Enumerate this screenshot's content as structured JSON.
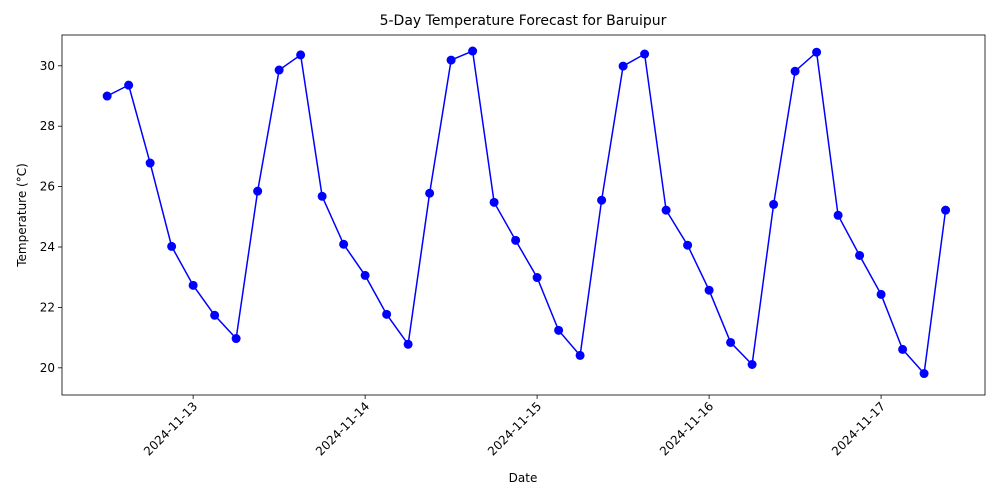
{
  "chart_data": {
    "type": "line",
    "title": "5-Day Temperature Forecast for Baruipur",
    "xlabel": "Date",
    "ylabel": "Temperature (°C)",
    "x": [
      "2024-11-12 12:00",
      "2024-11-12 15:00",
      "2024-11-12 18:00",
      "2024-11-12 21:00",
      "2024-11-13 00:00",
      "2024-11-13 03:00",
      "2024-11-13 06:00",
      "2024-11-13 09:00",
      "2024-11-13 12:00",
      "2024-11-13 15:00",
      "2024-11-13 18:00",
      "2024-11-13 21:00",
      "2024-11-14 00:00",
      "2024-11-14 03:00",
      "2024-11-14 06:00",
      "2024-11-14 09:00",
      "2024-11-14 12:00",
      "2024-11-14 15:00",
      "2024-11-14 18:00",
      "2024-11-14 21:00",
      "2024-11-15 00:00",
      "2024-11-15 03:00",
      "2024-11-15 06:00",
      "2024-11-15 09:00",
      "2024-11-15 12:00",
      "2024-11-15 15:00",
      "2024-11-15 18:00",
      "2024-11-15 21:00",
      "2024-11-16 00:00",
      "2024-11-16 03:00",
      "2024-11-16 06:00",
      "2024-11-16 09:00",
      "2024-11-16 12:00",
      "2024-11-16 15:00",
      "2024-11-16 18:00",
      "2024-11-16 21:00",
      "2024-11-17 00:00",
      "2024-11-17 03:00",
      "2024-11-17 06:00",
      "2024-11-17 09:00"
    ],
    "values": [
      29.0,
      29.36,
      26.78,
      24.02,
      22.73,
      21.74,
      20.97,
      25.85,
      29.86,
      30.36,
      25.68,
      24.09,
      23.06,
      21.77,
      20.78,
      25.78,
      30.19,
      30.49,
      25.48,
      24.22,
      22.99,
      21.24,
      20.41,
      25.55,
      29.99,
      30.39,
      25.22,
      24.06,
      22.57,
      20.84,
      20.11,
      25.41,
      29.82,
      30.45,
      25.05,
      23.72,
      22.43,
      20.61,
      19.81,
      25.22
    ],
    "color": "#0000ff",
    "xlim": [
      "2024-11-12 05:42",
      "2024-11-17 14:30"
    ],
    "xticks": [
      "2024-11-13",
      "2024-11-14",
      "2024-11-15",
      "2024-11-16",
      "2024-11-17"
    ],
    "ylim": [
      19.1,
      31.02
    ],
    "yticks": [
      20,
      22,
      24,
      26,
      28,
      30
    ],
    "grid": false
  }
}
